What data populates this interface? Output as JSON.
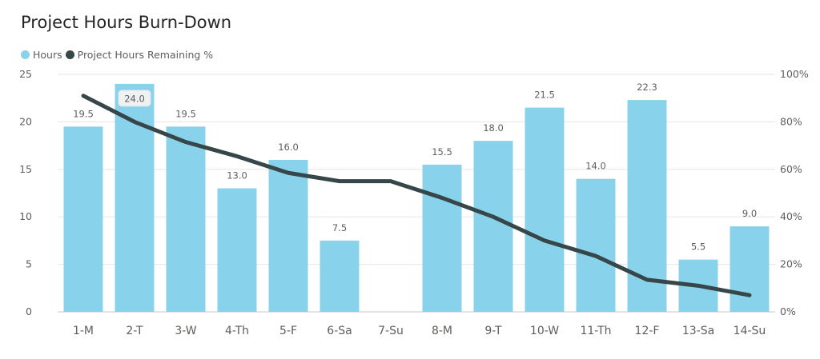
{
  "chart_data": {
    "type": "bar",
    "title": "Project Hours Burn-Down",
    "categories": [
      "1-M",
      "2-T",
      "3-W",
      "4-Th",
      "5-F",
      "6-Sa",
      "7-Su",
      "8-M",
      "9-T",
      "10-W",
      "11-Th",
      "12-F",
      "13-Sa",
      "14-Su"
    ],
    "series": [
      {
        "name": "Hours",
        "type": "bar",
        "axis": "left",
        "color": "#88d3eb",
        "values": [
          19.5,
          24.0,
          19.5,
          13.0,
          16.0,
          7.5,
          null,
          15.5,
          18.0,
          21.5,
          14.0,
          22.3,
          5.5,
          9.0
        ],
        "labels": [
          "19.5",
          "24.0",
          "19.5",
          "13.0",
          "16.0",
          "7.5",
          "",
          "15.5",
          "18.0",
          "21.5",
          "14.0",
          "22.3",
          "5.5",
          "9.0"
        ]
      },
      {
        "name": "Project Hours Remaining %",
        "type": "line",
        "axis": "right",
        "color": "#374649",
        "values": [
          91,
          80,
          71.5,
          65.5,
          58.5,
          55,
          55,
          48,
          40,
          30,
          23.5,
          13.5,
          11,
          7
        ]
      }
    ],
    "y_left": {
      "min": 0,
      "max": 25,
      "ticks": [
        "0",
        "5",
        "10",
        "15",
        "20",
        "25"
      ]
    },
    "y_right": {
      "min": 0,
      "max": 100,
      "ticks": [
        "0%",
        "20%",
        "40%",
        "60%",
        "80%",
        "100%"
      ]
    },
    "highlighted_label_index": 1,
    "grid": true,
    "legend_position": "top-left",
    "gridline_color": "#e6e6e6",
    "axis_line_color": "#c8c6c4"
  }
}
